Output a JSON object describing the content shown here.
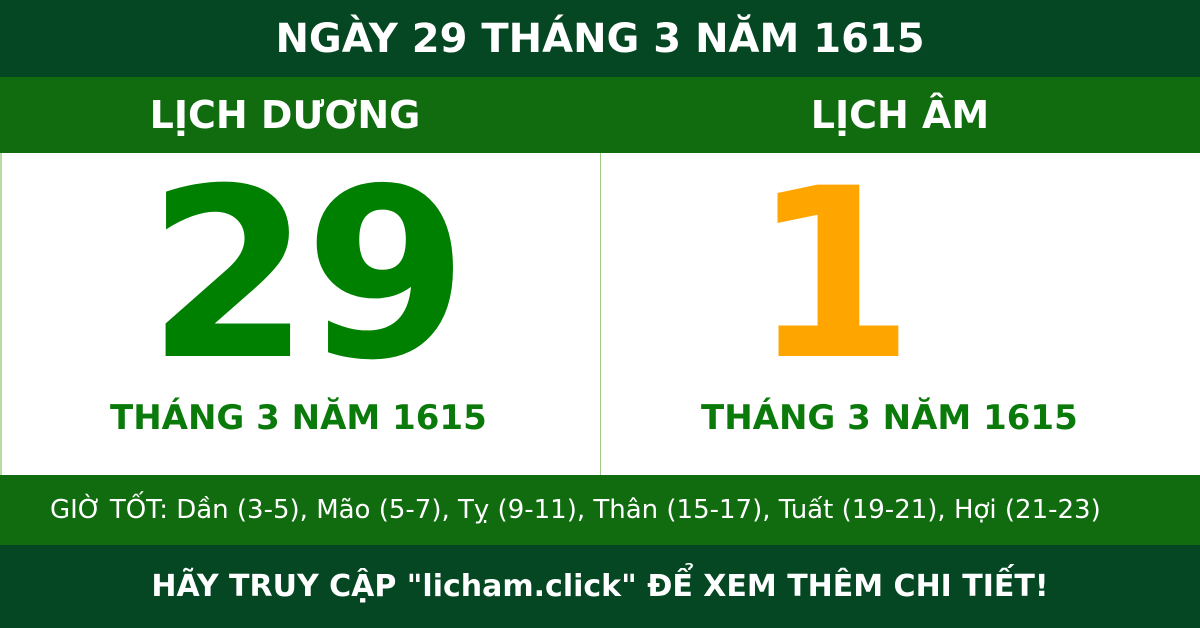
{
  "header": {
    "title": "NGÀY 29 THÁNG 3 NĂM 1615"
  },
  "solar": {
    "label": "LỊCH DƯƠNG",
    "day": "29",
    "month_year": "THÁNG 3 NĂM 1615"
  },
  "lunar": {
    "label": "LỊCH ÂM",
    "day": "1",
    "month_year": "THÁNG 3 NĂM 1615"
  },
  "good_hours": "GIỜ TỐT: Dần (3-5), Mão (5-7), Tỵ (9-11), Thân (15-17), Tuất (19-21), Hợi (21-23)",
  "footer": {
    "cta": "HÃY TRUY CẬP \"licham.click\" ĐỂ XEM THÊM CHI TIẾT!"
  },
  "colors": {
    "dark_green": "#044722",
    "green": "#116c10",
    "solar_number": "#008000",
    "lunar_number": "#ffa500"
  }
}
